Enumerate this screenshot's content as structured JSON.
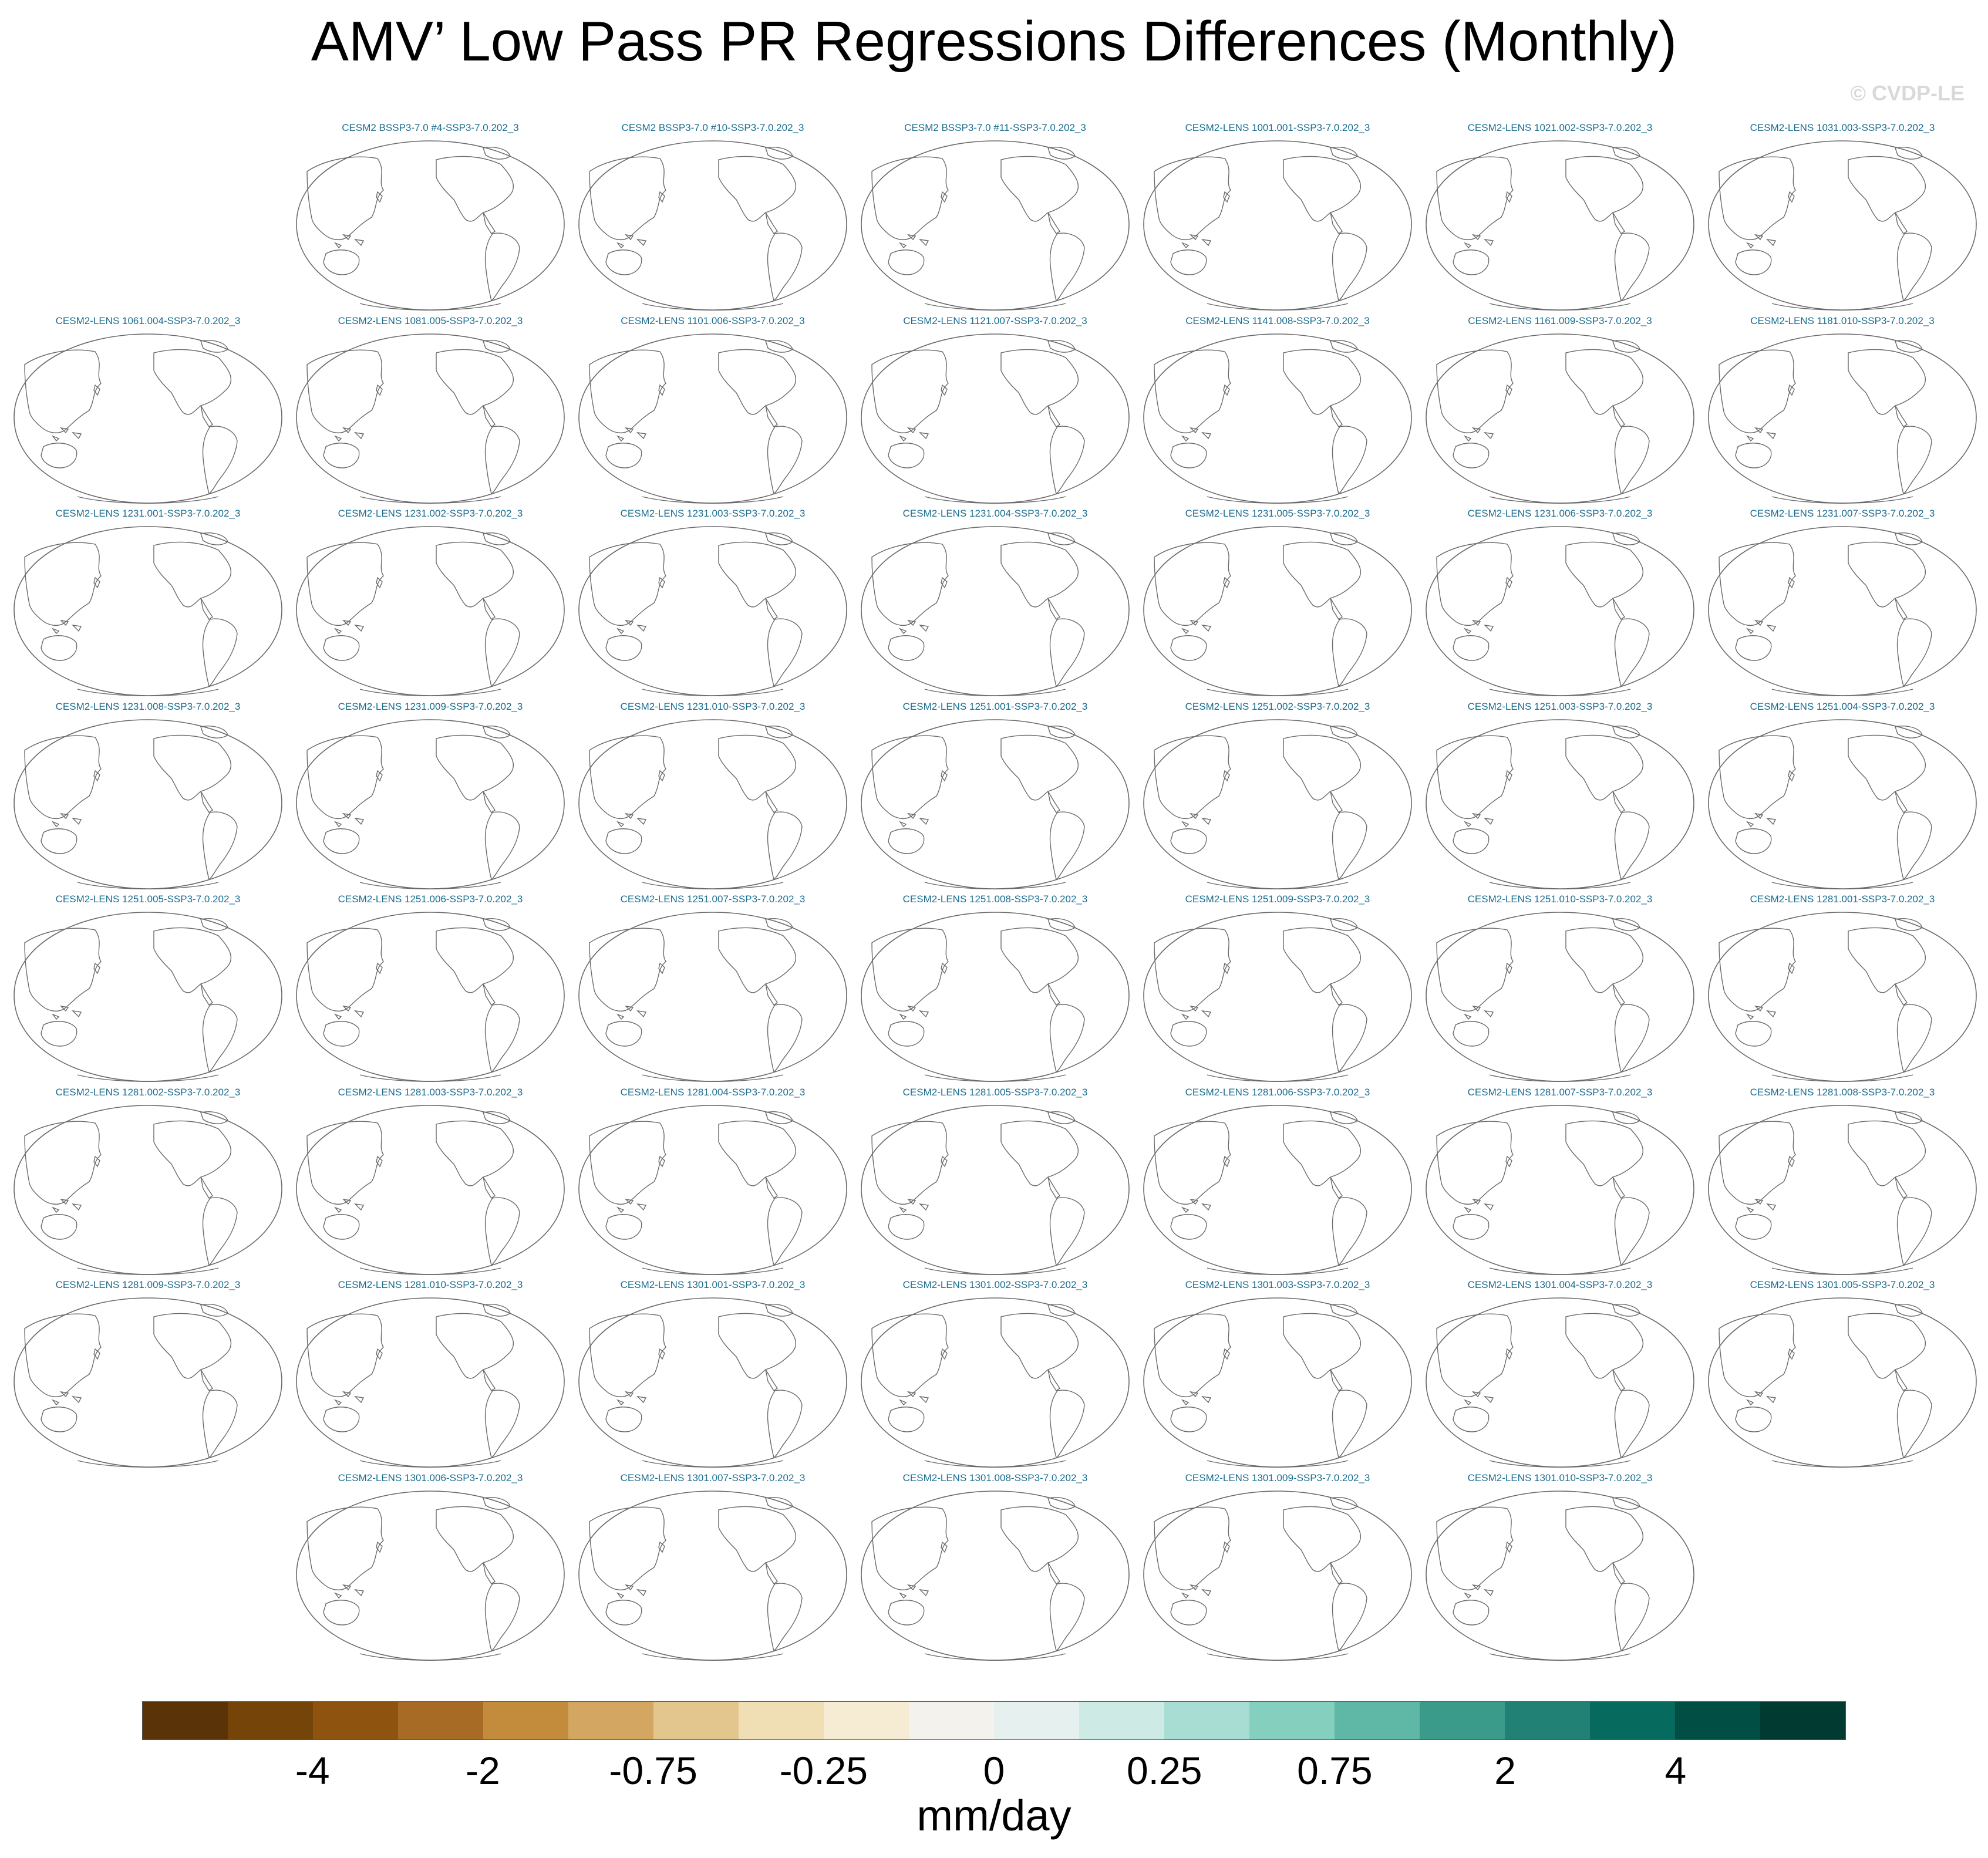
{
  "title": "AMV’ Low Pass PR Regressions Differences (Monthly)",
  "copyright": "© CVDP-LE",
  "panels": [
    {
      "label": "CESM2 BSSP3-7.0 #4-SSP3-7.0.202_3",
      "row": 0,
      "col": 1
    },
    {
      "label": "CESM2 BSSP3-7.0 #10-SSP3-7.0.202_3",
      "row": 0,
      "col": 2
    },
    {
      "label": "CESM2 BSSP3-7.0 #11-SSP3-7.0.202_3",
      "row": 0,
      "col": 3
    },
    {
      "label": "CESM2-LENS 1001.001-SSP3-7.0.202_3",
      "row": 0,
      "col": 4
    },
    {
      "label": "CESM2-LENS 1021.002-SSP3-7.0.202_3",
      "row": 0,
      "col": 5
    },
    {
      "label": "CESM2-LENS 1031.003-SSP3-7.0.202_3",
      "row": 0,
      "col": 6
    },
    {
      "label": "CESM2-LENS 1061.004-SSP3-7.0.202_3",
      "row": 1,
      "col": 0
    },
    {
      "label": "CESM2-LENS 1081.005-SSP3-7.0.202_3",
      "row": 1,
      "col": 1
    },
    {
      "label": "CESM2-LENS 1101.006-SSP3-7.0.202_3",
      "row": 1,
      "col": 2
    },
    {
      "label": "CESM2-LENS 1121.007-SSP3-7.0.202_3",
      "row": 1,
      "col": 3
    },
    {
      "label": "CESM2-LENS 1141.008-SSP3-7.0.202_3",
      "row": 1,
      "col": 4
    },
    {
      "label": "CESM2-LENS 1161.009-SSP3-7.0.202_3",
      "row": 1,
      "col": 5
    },
    {
      "label": "CESM2-LENS 1181.010-SSP3-7.0.202_3",
      "row": 1,
      "col": 6
    },
    {
      "label": "CESM2-LENS 1231.001-SSP3-7.0.202_3",
      "row": 2,
      "col": 0
    },
    {
      "label": "CESM2-LENS 1231.002-SSP3-7.0.202_3",
      "row": 2,
      "col": 1
    },
    {
      "label": "CESM2-LENS 1231.003-SSP3-7.0.202_3",
      "row": 2,
      "col": 2
    },
    {
      "label": "CESM2-LENS 1231.004-SSP3-7.0.202_3",
      "row": 2,
      "col": 3
    },
    {
      "label": "CESM2-LENS 1231.005-SSP3-7.0.202_3",
      "row": 2,
      "col": 4
    },
    {
      "label": "CESM2-LENS 1231.006-SSP3-7.0.202_3",
      "row": 2,
      "col": 5
    },
    {
      "label": "CESM2-LENS 1231.007-SSP3-7.0.202_3",
      "row": 2,
      "col": 6
    },
    {
      "label": "CESM2-LENS 1231.008-SSP3-7.0.202_3",
      "row": 3,
      "col": 0
    },
    {
      "label": "CESM2-LENS 1231.009-SSP3-7.0.202_3",
      "row": 3,
      "col": 1
    },
    {
      "label": "CESM2-LENS 1231.010-SSP3-7.0.202_3",
      "row": 3,
      "col": 2
    },
    {
      "label": "CESM2-LENS 1251.001-SSP3-7.0.202_3",
      "row": 3,
      "col": 3
    },
    {
      "label": "CESM2-LENS 1251.002-SSP3-7.0.202_3",
      "row": 3,
      "col": 4
    },
    {
      "label": "CESM2-LENS 1251.003-SSP3-7.0.202_3",
      "row": 3,
      "col": 5
    },
    {
      "label": "CESM2-LENS 1251.004-SSP3-7.0.202_3",
      "row": 3,
      "col": 6
    },
    {
      "label": "CESM2-LENS 1251.005-SSP3-7.0.202_3",
      "row": 4,
      "col": 0
    },
    {
      "label": "CESM2-LENS 1251.006-SSP3-7.0.202_3",
      "row": 4,
      "col": 1
    },
    {
      "label": "CESM2-LENS 1251.007-SSP3-7.0.202_3",
      "row": 4,
      "col": 2
    },
    {
      "label": "CESM2-LENS 1251.008-SSP3-7.0.202_3",
      "row": 4,
      "col": 3
    },
    {
      "label": "CESM2-LENS 1251.009-SSP3-7.0.202_3",
      "row": 4,
      "col": 4
    },
    {
      "label": "CESM2-LENS 1251.010-SSP3-7.0.202_3",
      "row": 4,
      "col": 5
    },
    {
      "label": "CESM2-LENS 1281.001-SSP3-7.0.202_3",
      "row": 4,
      "col": 6
    },
    {
      "label": "CESM2-LENS 1281.002-SSP3-7.0.202_3",
      "row": 5,
      "col": 0
    },
    {
      "label": "CESM2-LENS 1281.003-SSP3-7.0.202_3",
      "row": 5,
      "col": 1
    },
    {
      "label": "CESM2-LENS 1281.004-SSP3-7.0.202_3",
      "row": 5,
      "col": 2
    },
    {
      "label": "CESM2-LENS 1281.005-SSP3-7.0.202_3",
      "row": 5,
      "col": 3
    },
    {
      "label": "CESM2-LENS 1281.006-SSP3-7.0.202_3",
      "row": 5,
      "col": 4
    },
    {
      "label": "CESM2-LENS 1281.007-SSP3-7.0.202_3",
      "row": 5,
      "col": 5
    },
    {
      "label": "CESM2-LENS 1281.008-SSP3-7.0.202_3",
      "row": 5,
      "col": 6
    },
    {
      "label": "CESM2-LENS 1281.009-SSP3-7.0.202_3",
      "row": 6,
      "col": 0
    },
    {
      "label": "CESM2-LENS 1281.010-SSP3-7.0.202_3",
      "row": 6,
      "col": 1
    },
    {
      "label": "CESM2-LENS 1301.001-SSP3-7.0.202_3",
      "row": 6,
      "col": 2
    },
    {
      "label": "CESM2-LENS 1301.002-SSP3-7.0.202_3",
      "row": 6,
      "col": 3
    },
    {
      "label": "CESM2-LENS 1301.003-SSP3-7.0.202_3",
      "row": 6,
      "col": 4
    },
    {
      "label": "CESM2-LENS 1301.004-SSP3-7.0.202_3",
      "row": 6,
      "col": 5
    },
    {
      "label": "CESM2-LENS 1301.005-SSP3-7.0.202_3",
      "row": 6,
      "col": 6
    },
    {
      "label": "CESM2-LENS 1301.006-SSP3-7.0.202_3",
      "row": 7,
      "col": 1
    },
    {
      "label": "CESM2-LENS 1301.007-SSP3-7.0.202_3",
      "row": 7,
      "col": 2
    },
    {
      "label": "CESM2-LENS 1301.008-SSP3-7.0.202_3",
      "row": 7,
      "col": 3
    },
    {
      "label": "CESM2-LENS 1301.009-SSP3-7.0.202_3",
      "row": 7,
      "col": 4
    },
    {
      "label": "CESM2-LENS 1301.010-SSP3-7.0.202_3",
      "row": 7,
      "col": 5
    }
  ],
  "colorbar": {
    "colors": [
      "#5a3408",
      "#744409",
      "#8e530f",
      "#a86b25",
      "#c38c3d",
      "#d3a762",
      "#e3c68e",
      "#f0dfb4",
      "#f5ecd3",
      "#f4f2ed",
      "#e6f1ef",
      "#cdeae4",
      "#a7ddd3",
      "#85cfbf",
      "#5fb8a6",
      "#3a9b8a",
      "#208174",
      "#066a5e",
      "#014f44",
      "#003a30"
    ],
    "tick_labels": [
      "-4",
      "-2",
      "-0.75",
      "-0.25",
      "0",
      "0.25",
      "0.75",
      "2",
      "4"
    ],
    "units": "mm/day"
  },
  "colors": {
    "panel_label": "#1a6d8f",
    "coastline": "#6a6a6a"
  }
}
